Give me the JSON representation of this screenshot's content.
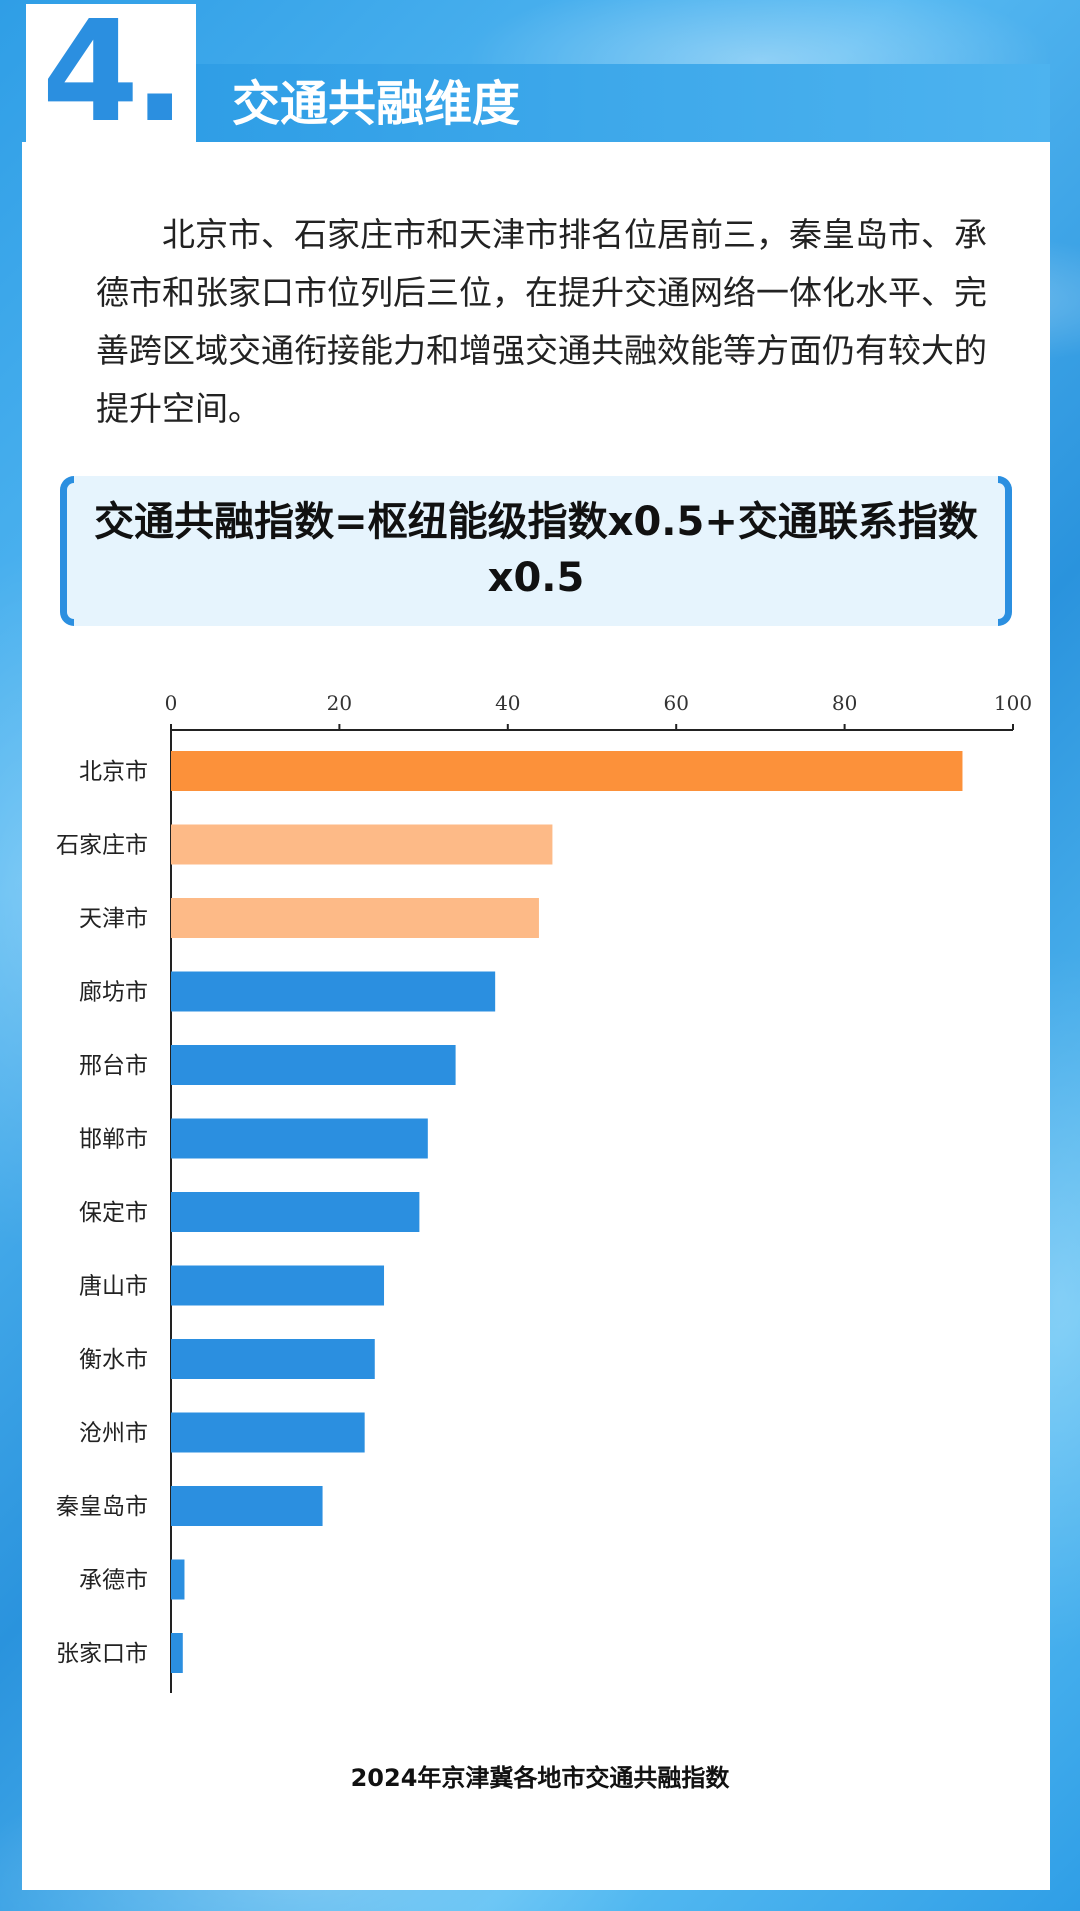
{
  "section": {
    "number": "4.",
    "title": "交通共融维度"
  },
  "intro_text": "北京市、石家庄市和天津市排名位居前三，秦皇岛市、承德市和张家口市位列后三位，在提升交通网络一体化水平、完善跨区域交通衔接能力和增强交通共融效能等方面仍有较大的提升空间。",
  "formula": "交通共融指数=枢纽能级指数x0.5+交通联系指数x0.5",
  "colors": {
    "top1": "#fc913a",
    "top2_3": "#fdba87",
    "others": "#2b8fe0",
    "accent": "#2b8fe0"
  },
  "chart_data": {
    "type": "bar",
    "orientation": "horizontal",
    "title": "2024年京津冀各地市交通共融指数",
    "categories": [
      "北京市",
      "石家庄市",
      "天津市",
      "廊坊市",
      "邢台市",
      "邯郸市",
      "保定市",
      "唐山市",
      "衡水市",
      "沧州市",
      "秦皇岛市",
      "承德市",
      "张家口市"
    ],
    "values": [
      94,
      45.3,
      43.7,
      38.5,
      33.8,
      30.5,
      29.5,
      25.3,
      24.2,
      23,
      18,
      1.6,
      1.4
    ],
    "xlim": [
      0,
      100
    ],
    "xticks": [
      "0",
      "20",
      "40",
      "60",
      "80",
      "100"
    ],
    "axis_position": "top",
    "grid": false
  }
}
